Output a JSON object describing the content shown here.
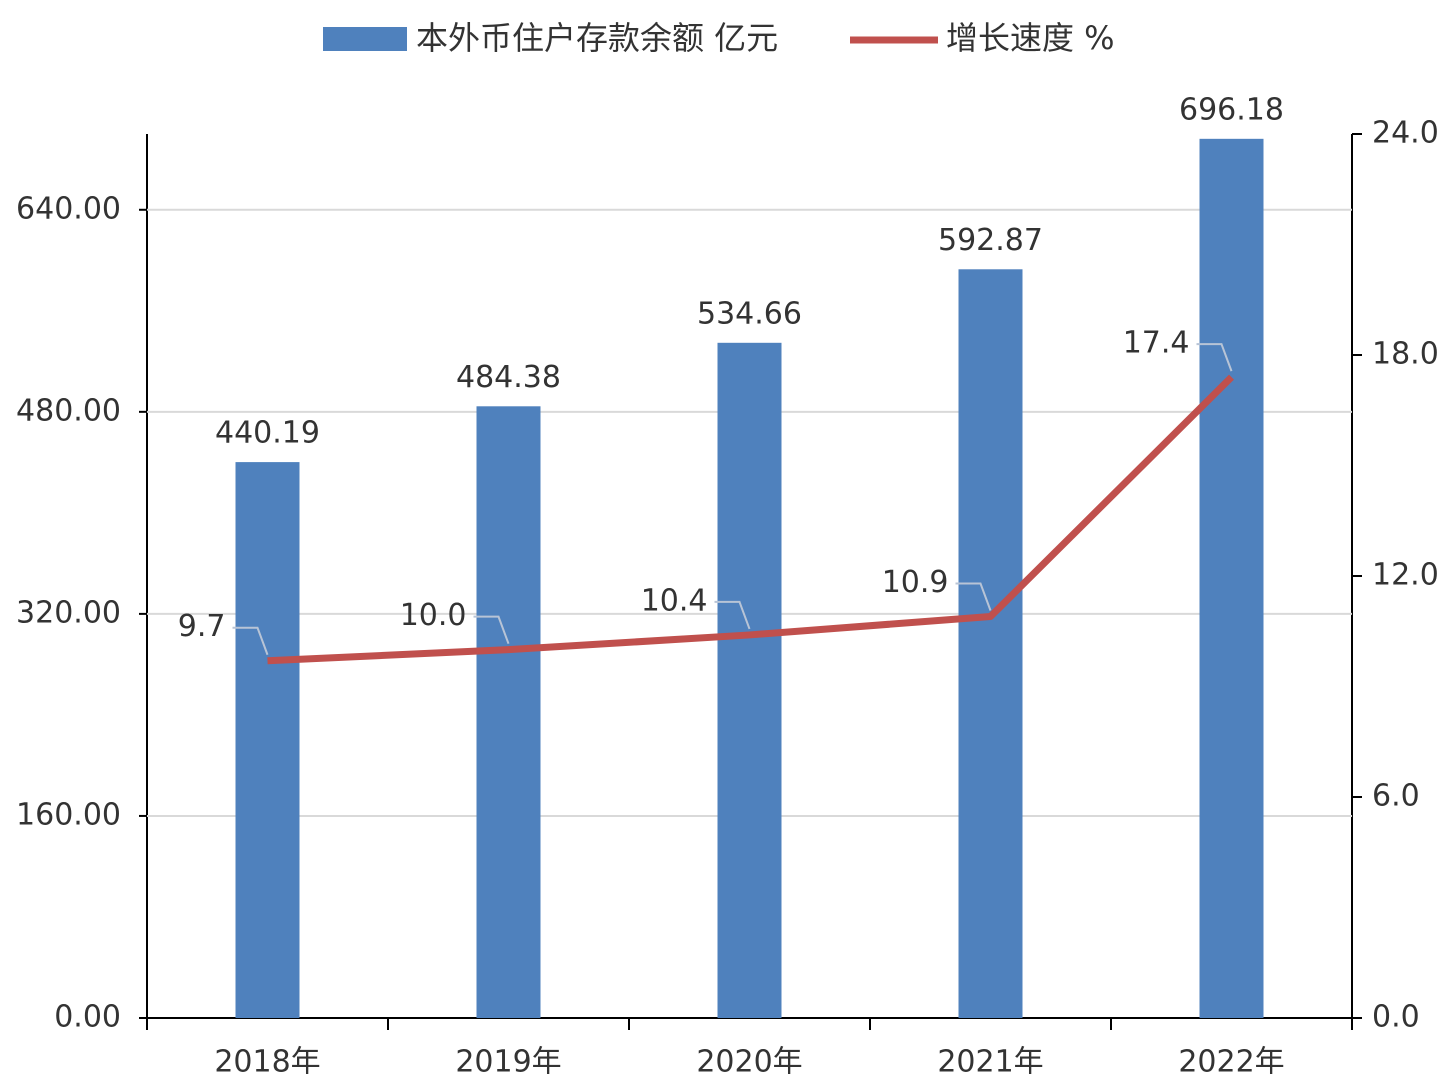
{
  "chart_data": {
    "type": "bar_line",
    "categories": [
      "2018年",
      "2019年",
      "2020年",
      "2021年",
      "2022年"
    ],
    "series": [
      {
        "name": "本外币住户存款余额 亿元",
        "type": "bar",
        "color": "#4f81bd",
        "values": [
          440.19,
          484.38,
          534.66,
          592.87,
          696.18
        ]
      },
      {
        "name": "增长速度 %",
        "type": "line",
        "axis": "y2",
        "color": "#c0504d",
        "values": [
          9.7,
          10.0,
          10.4,
          10.9,
          17.4
        ],
        "value_labels": [
          "9.7",
          "10.0",
          "10.4",
          "10.9",
          "17.4"
        ]
      }
    ],
    "ylim": [
      0,
      700
    ],
    "yticks": [
      {
        "value": 0,
        "label": "0.00"
      },
      {
        "value": 160,
        "label": "160.00"
      },
      {
        "value": 320,
        "label": "320.00"
      },
      {
        "value": 480,
        "label": "480.00"
      },
      {
        "value": 640,
        "label": "640.00"
      }
    ],
    "y2lim": [
      0,
      24
    ],
    "y2ticks": [
      {
        "value": 0,
        "label": "0.0"
      },
      {
        "value": 6,
        "label": "6.0"
      },
      {
        "value": 12,
        "label": "12.0"
      },
      {
        "value": 18,
        "label": "18.0"
      },
      {
        "value": 24,
        "label": "24.0"
      }
    ],
    "grid": true
  }
}
